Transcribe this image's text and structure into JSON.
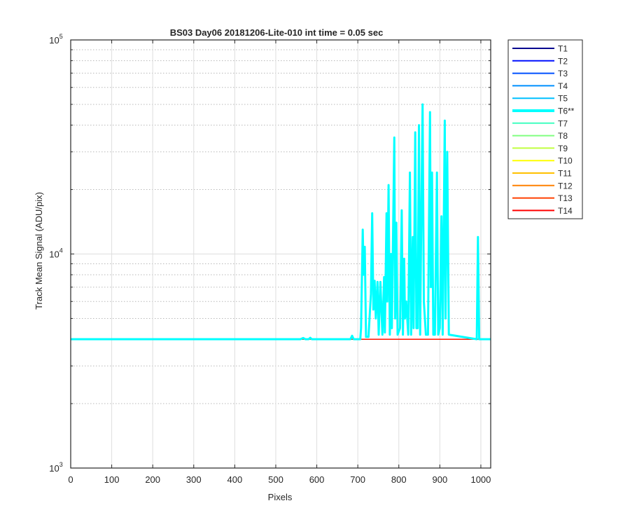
{
  "chart_data": {
    "type": "line",
    "title": "BS03 Day06 20181206-Lite-010 int time = 0.05 sec",
    "xlabel": "Pixels",
    "ylabel": "Track Mean Signal (ADU/pix)",
    "xlim": [
      0,
      1024
    ],
    "ylim": [
      1000,
      100000
    ],
    "y_scale": "log",
    "x_ticks": [
      "0",
      "100",
      "200",
      "300",
      "400",
      "500",
      "600",
      "700",
      "800",
      "900",
      "1000"
    ],
    "x_tick_values": [
      0,
      100,
      200,
      300,
      400,
      500,
      600,
      700,
      800,
      900,
      1000
    ],
    "y_ticks": [
      {
        "value": 1000,
        "base": "10",
        "exp": "3"
      },
      {
        "value": 10000,
        "base": "10",
        "exp": "4"
      },
      {
        "value": 100000,
        "base": "10",
        "exp": "5"
      }
    ],
    "grid": true,
    "minor_grid": true,
    "legend_position": "outside-right",
    "baseline": 4000,
    "series": [
      {
        "name": "T1",
        "color": "#00008f",
        "values": "baseline"
      },
      {
        "name": "T2",
        "color": "#0010ff",
        "values": "baseline"
      },
      {
        "name": "T3",
        "color": "#0050ff",
        "values": "baseline"
      },
      {
        "name": "T4",
        "color": "#0090ff",
        "values": "baseline"
      },
      {
        "name": "T5",
        "color": "#00c0ff",
        "values": "baseline"
      },
      {
        "name": "T6**",
        "color": "#00ffff",
        "highlight": true,
        "points": [
          [
            0,
            4000
          ],
          [
            560,
            4000
          ],
          [
            567,
            4050
          ],
          [
            572,
            4000
          ],
          [
            580,
            4000
          ],
          [
            584,
            4060
          ],
          [
            588,
            4000
          ],
          [
            682,
            4000
          ],
          [
            686,
            4150
          ],
          [
            690,
            4000
          ],
          [
            706,
            4000
          ],
          [
            708,
            4500
          ],
          [
            712,
            13000
          ],
          [
            714,
            8000
          ],
          [
            717,
            10800
          ],
          [
            720,
            4100
          ],
          [
            726,
            4100
          ],
          [
            732,
            6500
          ],
          [
            735,
            15500
          ],
          [
            738,
            5500
          ],
          [
            741,
            7500
          ],
          [
            744,
            5000
          ],
          [
            748,
            7400
          ],
          [
            751,
            4200
          ],
          [
            755,
            7400
          ],
          [
            760,
            4200
          ],
          [
            764,
            7800
          ],
          [
            766,
            4300
          ],
          [
            770,
            15500
          ],
          [
            772,
            6000
          ],
          [
            775,
            21000
          ],
          [
            778,
            4200
          ],
          [
            781,
            10000
          ],
          [
            783,
            4500
          ],
          [
            789,
            35000
          ],
          [
            791,
            5000
          ],
          [
            794,
            14000
          ],
          [
            797,
            4200
          ],
          [
            803,
            4500
          ],
          [
            807,
            16000
          ],
          [
            810,
            4200
          ],
          [
            813,
            9500
          ],
          [
            815,
            5000
          ],
          [
            818,
            6000
          ],
          [
            823,
            4200
          ],
          [
            827,
            24000
          ],
          [
            830,
            4200
          ],
          [
            834,
            12000
          ],
          [
            836,
            4500
          ],
          [
            838,
            12000
          ],
          [
            840,
            37000
          ],
          [
            843,
            4500
          ],
          [
            846,
            4500
          ],
          [
            849,
            40000
          ],
          [
            852,
            4200
          ],
          [
            855,
            16000
          ],
          [
            858,
            50000
          ],
          [
            861,
            6000
          ],
          [
            866,
            4200
          ],
          [
            871,
            4200
          ],
          [
            876,
            46000
          ],
          [
            878,
            7000
          ],
          [
            881,
            24000
          ],
          [
            884,
            4200
          ],
          [
            888,
            4200
          ],
          [
            893,
            24000
          ],
          [
            896,
            4200
          ],
          [
            900,
            4500
          ],
          [
            904,
            15000
          ],
          [
            907,
            4200
          ],
          [
            912,
            42000
          ],
          [
            914,
            5000
          ],
          [
            918,
            30000
          ],
          [
            922,
            4200
          ],
          [
            990,
            4000
          ],
          [
            993,
            12000
          ],
          [
            996,
            4000
          ],
          [
            1000,
            4000
          ],
          [
            1024,
            4000
          ]
        ]
      },
      {
        "name": "T7",
        "color": "#40ffc0",
        "values": "baseline"
      },
      {
        "name": "T8",
        "color": "#80ff80",
        "values": "baseline"
      },
      {
        "name": "T9",
        "color": "#c0ff40",
        "values": "baseline"
      },
      {
        "name": "T10",
        "color": "#ffff00",
        "values": "baseline"
      },
      {
        "name": "T11",
        "color": "#ffc000",
        "values": "baseline"
      },
      {
        "name": "T12",
        "color": "#ff8000",
        "values": "baseline"
      },
      {
        "name": "T13",
        "color": "#ff4000",
        "values": "baseline"
      },
      {
        "name": "T14",
        "color": "#ff0000",
        "values": "baseline"
      }
    ]
  }
}
